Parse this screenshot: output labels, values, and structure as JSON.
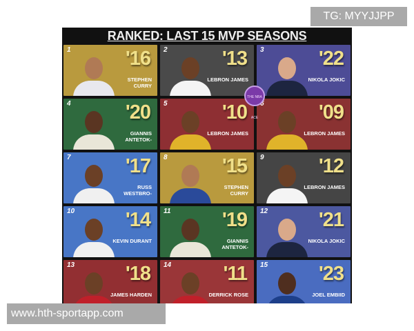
{
  "title": "RANKED: LAST 15 MVP SEASONS",
  "logo_text": "THE NBA ACE",
  "watermarks": {
    "top": "TG: MYYJJPP",
    "bottom": "www.hth-sportapp.com"
  },
  "cards": [
    {
      "rank": "1",
      "year": "'16",
      "name": "STEPHEN CURRY",
      "bg": "#b99a3e",
      "jersey": "#e8e8ee",
      "skin": "#b07a55"
    },
    {
      "rank": "2",
      "year": "'13",
      "name": "LEBRON JAMES",
      "bg": "#4a4a4a",
      "jersey": "#f4f4f4",
      "skin": "#6b4026"
    },
    {
      "rank": "3",
      "year": "'22",
      "name": "NIKOLA JOKIC",
      "bg": "#4d4c96",
      "jersey": "#1d2540",
      "skin": "#d9a98a"
    },
    {
      "rank": "4",
      "year": "'20",
      "name": "GIANNIS ANTETOK-",
      "bg": "#2f6a3e",
      "jersey": "#e9e6d8",
      "skin": "#5a3522"
    },
    {
      "rank": "5",
      "year": "'10",
      "name": "LEBRON JAMES",
      "bg": "#8e2f33",
      "jersey": "#e0b32a",
      "skin": "#6b4026"
    },
    {
      "rank": "6",
      "year": "'09",
      "name": "LEBRON JAMES",
      "bg": "#8a3232",
      "jersey": "#e0b32a",
      "skin": "#6b4026"
    },
    {
      "rank": "7",
      "year": "'17",
      "name": "RUSS WESTBRO-",
      "bg": "#4876c6",
      "jersey": "#f0f0f0",
      "skin": "#6b4026"
    },
    {
      "rank": "8",
      "year": "'15",
      "name": "STEPHEN CURRY",
      "bg": "#b99a3e",
      "jersey": "#2a4a9a",
      "skin": "#b07a55"
    },
    {
      "rank": "9",
      "year": "'12",
      "name": "LEBRON JAMES",
      "bg": "#454545",
      "jersey": "#f4f4f4",
      "skin": "#6b4026"
    },
    {
      "rank": "10",
      "year": "'14",
      "name": "KEVIN DURANT",
      "bg": "#4876c6",
      "jersey": "#f0f0f0",
      "skin": "#6b4026"
    },
    {
      "rank": "11",
      "year": "'19",
      "name": "GIANNIS ANTETOK-",
      "bg": "#2f6a3e",
      "jersey": "#e9e6d8",
      "skin": "#5a3522"
    },
    {
      "rank": "12",
      "year": "'21",
      "name": "NIKOLA JOKIC",
      "bg": "#4c58a0",
      "jersey": "#1d2540",
      "skin": "#d9a98a"
    },
    {
      "rank": "13",
      "year": "'18",
      "name": "JAMES HARDEN",
      "bg": "#922f32",
      "jersey": "#c0202a",
      "skin": "#6b4026"
    },
    {
      "rank": "14",
      "year": "'11",
      "name": "DERRICK ROSE",
      "bg": "#9a3638",
      "jersey": "#c0202a",
      "skin": "#6b4026"
    },
    {
      "rank": "15",
      "year": "'23",
      "name": "JOEL EMBIID",
      "bg": "#4a6cc0",
      "jersey": "#1d3f8a",
      "skin": "#4f2e1f"
    }
  ]
}
